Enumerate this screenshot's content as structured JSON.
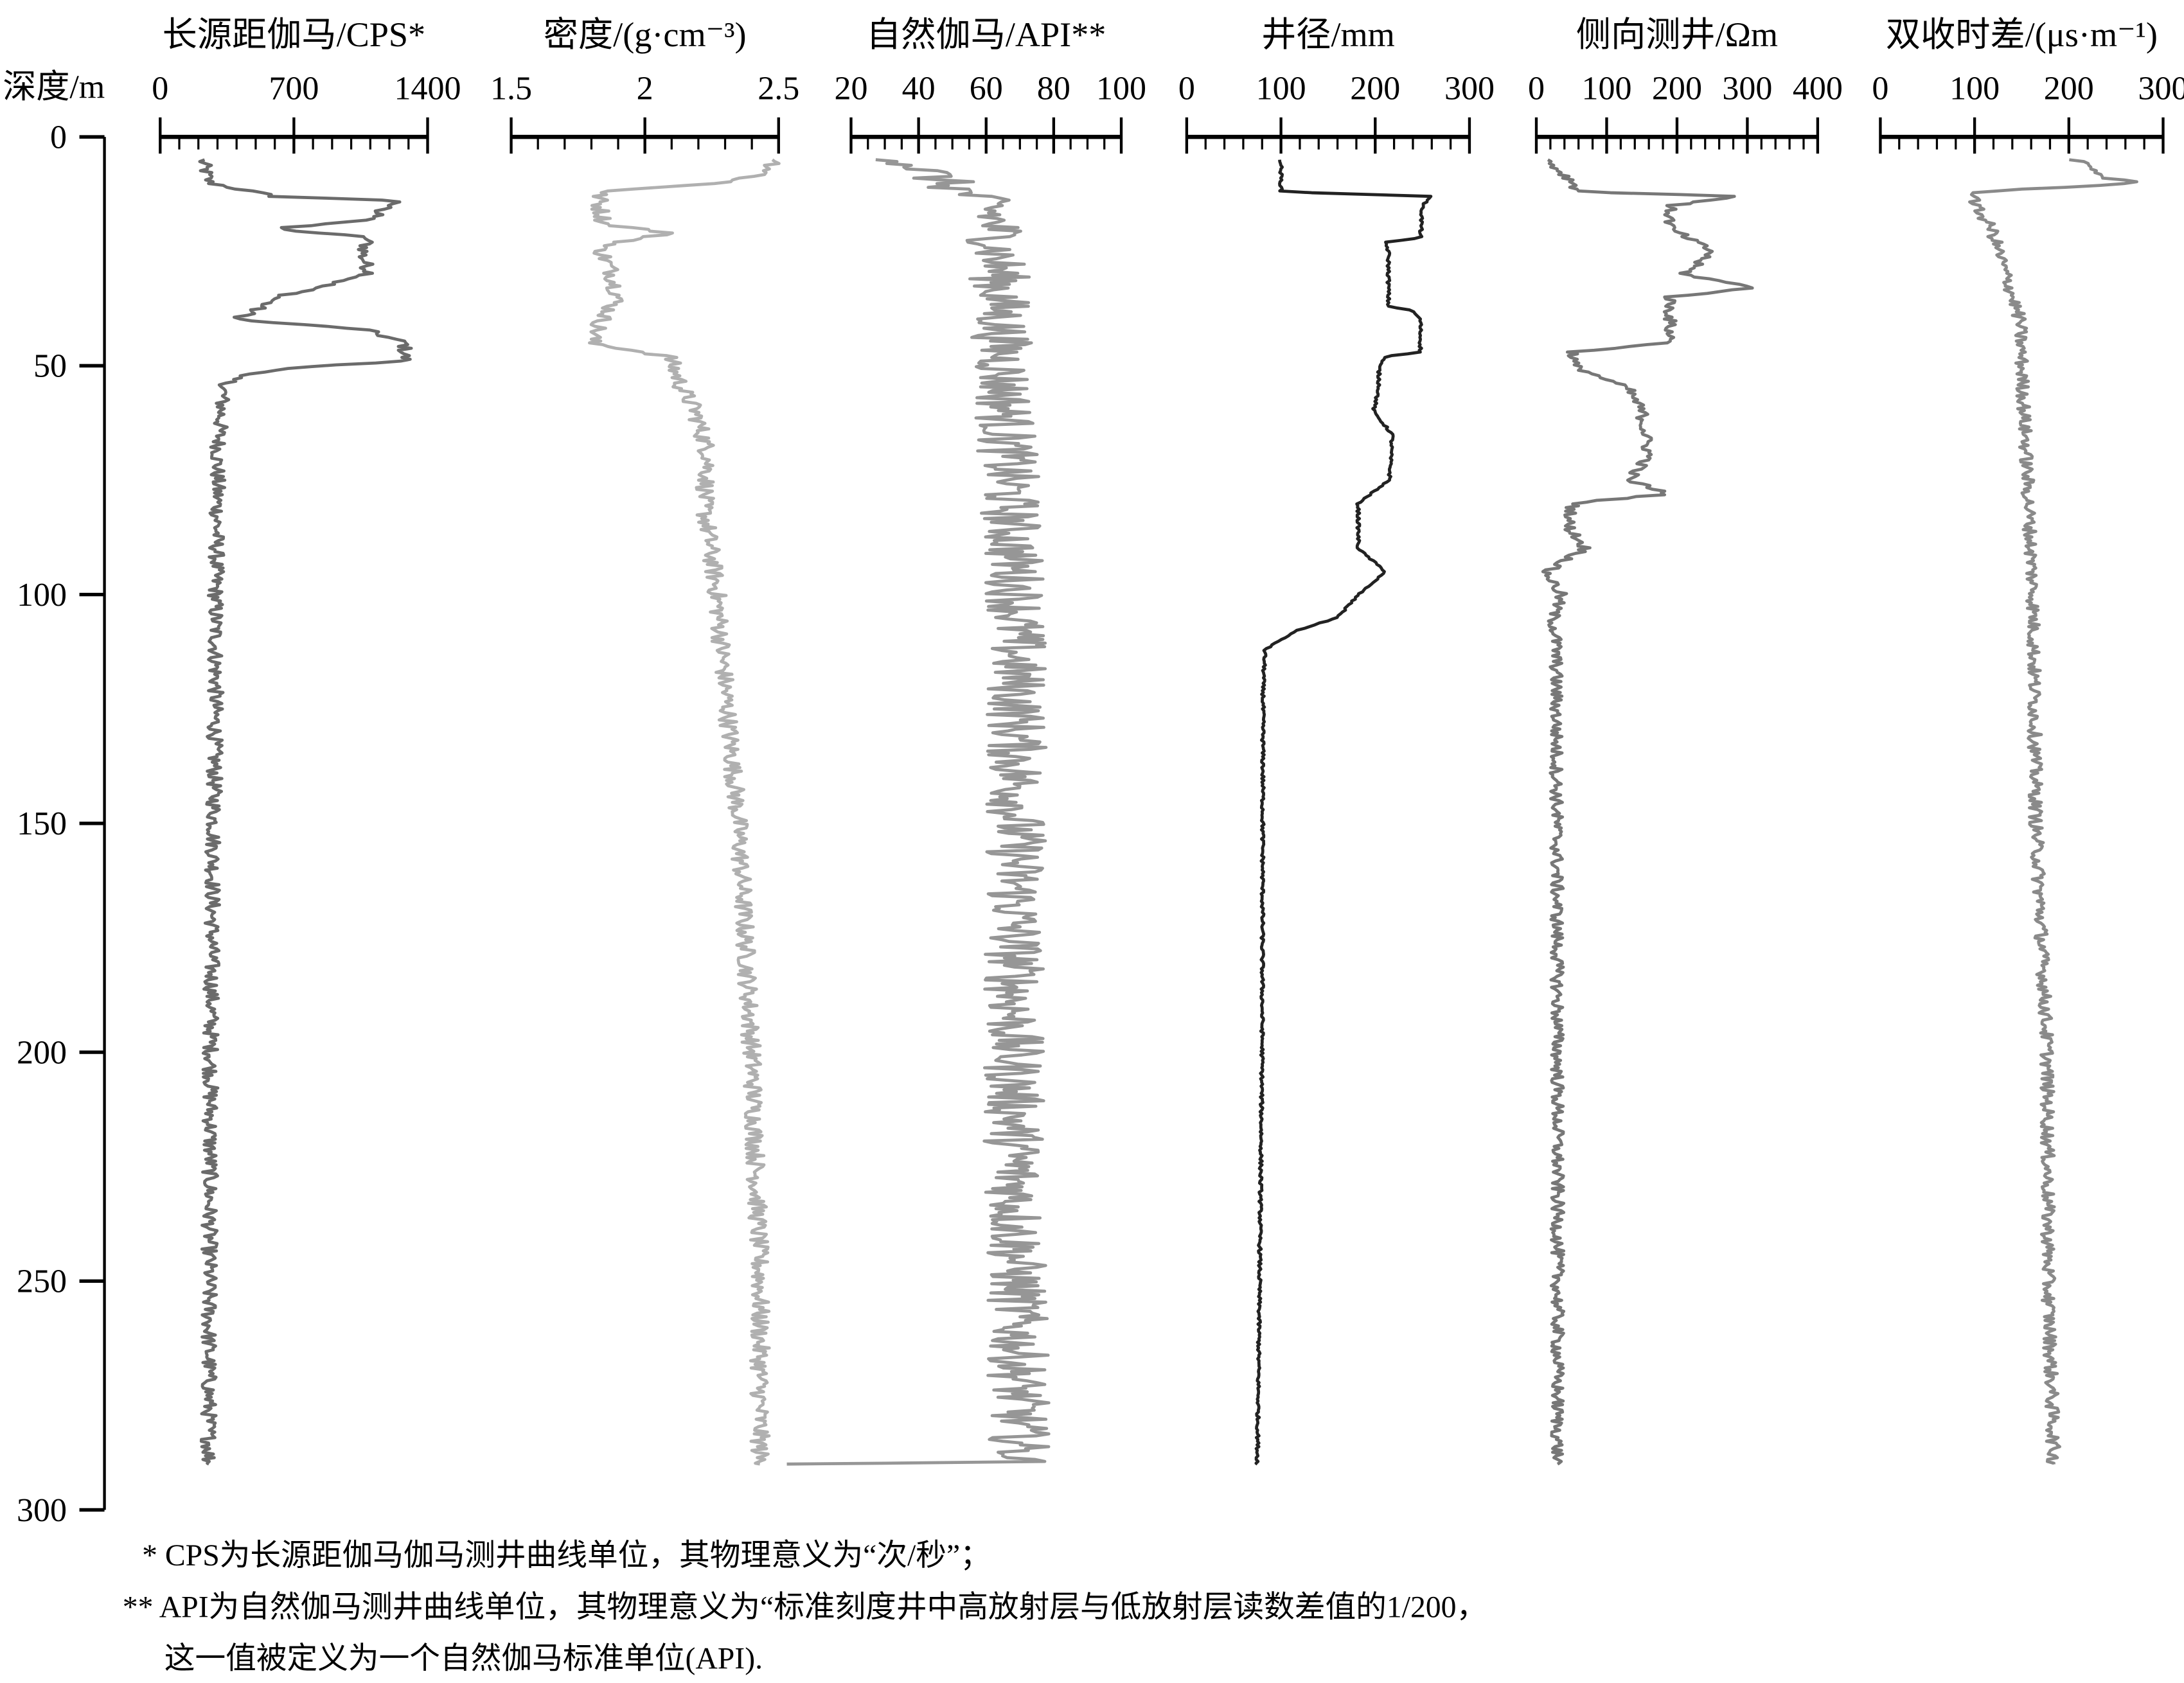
{
  "chart_data": {
    "type": "line",
    "depth_axis": {
      "label": "深度/m",
      "range": [
        0,
        300
      ],
      "ticks": [
        0,
        50,
        100,
        150,
        200,
        250,
        300
      ]
    },
    "tracks": [
      {
        "title": "长源距伽马/CPS*",
        "range": [
          0,
          1400
        ],
        "ticks": [
          0,
          700,
          1400
        ],
        "minor_step": 100,
        "color": "#6b6b6b",
        "depth": [
          5,
          10,
          13,
          14,
          16,
          18,
          20,
          22,
          26,
          30,
          35,
          40,
          42,
          45,
          49,
          50,
          52,
          55,
          60,
          70,
          80,
          100,
          120,
          150,
          180,
          200,
          230,
          260,
          290
        ],
        "values": [
          220,
          255,
          600,
          1280,
          1130,
          1150,
          580,
          1090,
          1060,
          1100,
          620,
          400,
          1060,
          1280,
          1280,
          840,
          400,
          330,
          320,
          300,
          300,
          290,
          290,
          280,
          270,
          265,
          260,
          255,
          255
        ]
      },
      {
        "title": "密度/(g·cm⁻³)",
        "title_parts": [
          "密度/(g·cm",
          "-3",
          ")"
        ],
        "range": [
          1.5,
          2.5
        ],
        "ticks": [
          "1.5",
          "2",
          "2.5"
        ],
        "minor_step": 0.1,
        "color": "#b0b0b0",
        "depth": [
          5,
          8,
          10,
          12,
          15,
          19,
          21,
          24,
          30,
          35,
          40,
          45,
          48,
          55,
          60,
          70,
          80,
          100,
          120,
          150,
          200,
          250,
          290
        ],
        "values": [
          2.5,
          2.45,
          2.3,
          1.83,
          1.83,
          1.85,
          2.09,
          1.83,
          1.88,
          1.9,
          1.84,
          1.8,
          2.09,
          2.14,
          2.19,
          2.24,
          2.22,
          2.27,
          2.3,
          2.35,
          2.4,
          2.43,
          2.43
        ]
      },
      {
        "title": "自然伽马/API**",
        "range": [
          20,
          100
        ],
        "ticks": [
          20,
          40,
          60,
          80,
          100
        ],
        "minor_step": 5,
        "color": "#969696",
        "depth": [
          5,
          10,
          15,
          20,
          30,
          50,
          80,
          100,
          150,
          200,
          250,
          289.5,
          290
        ],
        "values": [
          36,
          48,
          61,
          63,
          64,
          65,
          67,
          69,
          69,
          68,
          69,
          70,
          1
        ]
      },
      {
        "title": "井径/mm",
        "range": [
          0,
          300
        ],
        "ticks": [
          0,
          100,
          200,
          300
        ],
        "minor_step": 20,
        "color": "#222222",
        "depth": [
          5,
          12,
          13,
          15,
          22,
          23,
          25,
          37,
          38,
          40,
          47,
          48,
          50,
          55,
          60,
          65,
          75,
          80,
          90,
          95,
          100,
          105,
          108,
          112,
          120,
          200,
          290
        ],
        "values": [
          100,
          100,
          260,
          250,
          248,
          211,
          214,
          214,
          240,
          248,
          248,
          211,
          204,
          204,
          198,
          218,
          215,
          182,
          182,
          211,
          182,
          160,
          115,
          83,
          81,
          80,
          75
        ]
      },
      {
        "title": "侧向测井/Ωm",
        "range": [
          0,
          400
        ],
        "ticks": [
          0,
          100,
          200,
          300,
          400
        ],
        "minor_step": 20,
        "color": "#777777",
        "depth": [
          5,
          10,
          12,
          13,
          15,
          20,
          25,
          30,
          33,
          35,
          45,
          47,
          50,
          55,
          60,
          70,
          75,
          78,
          80,
          85,
          90,
          95,
          100,
          105,
          110,
          200,
          290
        ],
        "values": [
          14,
          53,
          60,
          290,
          190,
          190,
          250,
          210,
          310,
          190,
          190,
          53,
          53,
          130,
          150,
          160,
          130,
          190,
          53,
          45,
          70,
          14,
          35,
          24,
          28,
          30,
          30
        ]
      },
      {
        "title": "双收时差/(μs·m⁻¹)",
        "title_parts": [
          "双收时差/(μs·m",
          "-1",
          ")"
        ],
        "range": [
          0,
          300
        ],
        "ticks": [
          0,
          100,
          200,
          300
        ],
        "minor_step": 20,
        "color": "#8a8a8a",
        "depth": [
          5,
          9,
          10,
          12,
          15,
          20,
          30,
          40,
          50,
          100,
          150,
          200,
          250,
          290
        ],
        "values": [
          207,
          240,
          280,
          103,
          100,
          118,
          133,
          148,
          150,
          162,
          165,
          177,
          178,
          184
        ]
      }
    ],
    "notes": [
      "* CPS为长源距伽马伽马测井曲线单位，其物理意义为“次/秒”；",
      "** API为自然伽马测井曲线单位，其物理意义为“标准刻度井中高放射层与低放射层读数差值的1/200，",
      "这一值被定义为一个自然伽马标准单位(API)."
    ]
  }
}
